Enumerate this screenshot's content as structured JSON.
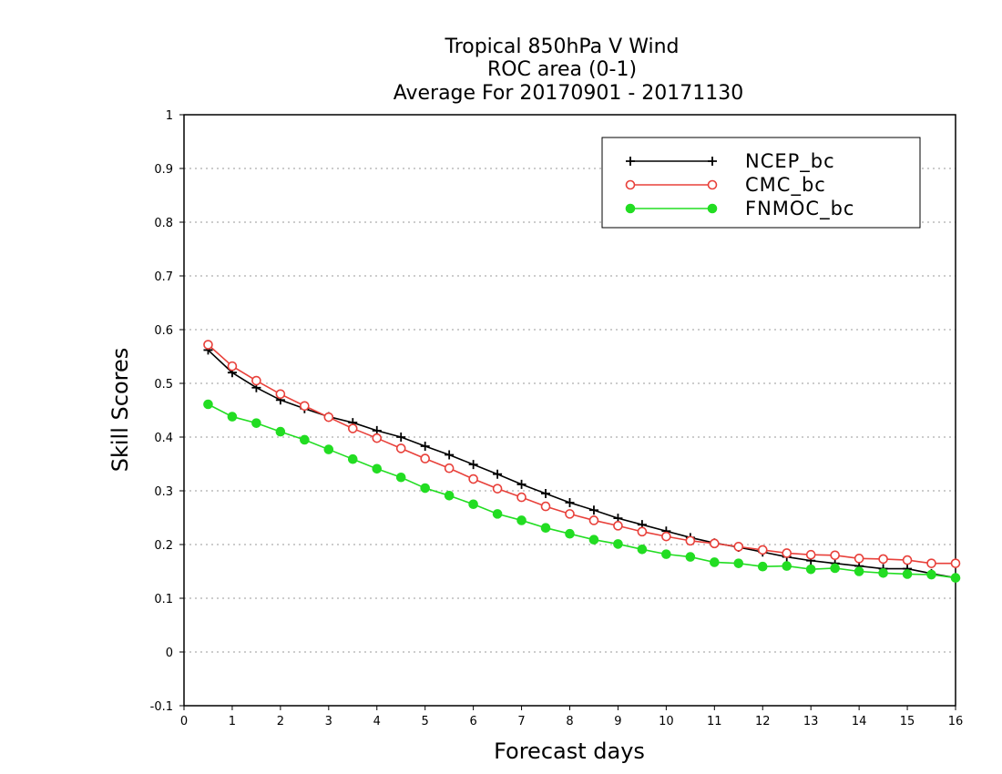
{
  "chart_data": {
    "type": "line",
    "title": [
      "Tropical 850hPa V Wind",
      "ROC area (0-1)",
      "Average For 20170901 - 20171130"
    ],
    "xlabel": "Forecast days",
    "ylabel": "Skill Scores",
    "xlim": [
      0,
      16
    ],
    "ylim": [
      -0.1,
      1
    ],
    "xticks": [
      "0",
      "1",
      "2",
      "3",
      "4",
      "5",
      "6",
      "7",
      "8",
      "9",
      "10",
      "11",
      "12",
      "13",
      "14",
      "15",
      "16"
    ],
    "yticks": [
      "-0.1",
      "0",
      "0.1",
      "0.2",
      "0.3",
      "0.4",
      "0.5",
      "0.6",
      "0.7",
      "0.8",
      "0.9",
      "1"
    ],
    "grid": "horizontal dotted",
    "legend_position": "top-right",
    "x": [
      0.5,
      1,
      1.5,
      2,
      2.5,
      3,
      3.5,
      4,
      4.5,
      5,
      5.5,
      6,
      6.5,
      7,
      7.5,
      8,
      8.5,
      9,
      9.5,
      10,
      10.5,
      11,
      11.5,
      12,
      12.5,
      13,
      13.5,
      14,
      14.5,
      15,
      15.5,
      16
    ],
    "series": [
      {
        "name": "NCEP_bc",
        "color": "#000000",
        "marker": "plus",
        "values": [
          0.562,
          0.52,
          0.492,
          0.469,
          0.453,
          0.438,
          0.427,
          0.412,
          0.4,
          0.383,
          0.367,
          0.349,
          0.331,
          0.312,
          0.295,
          0.278,
          0.264,
          0.249,
          0.237,
          0.225,
          0.213,
          0.203,
          0.195,
          0.186,
          0.177,
          0.17,
          0.165,
          0.16,
          0.155,
          0.155,
          0.146,
          0.138
        ]
      },
      {
        "name": "CMC_bc",
        "color": "#e8403a",
        "marker": "open-circle",
        "values": [
          0.572,
          0.532,
          0.505,
          0.48,
          0.458,
          0.437,
          0.416,
          0.398,
          0.379,
          0.36,
          0.342,
          0.322,
          0.304,
          0.288,
          0.271,
          0.257,
          0.245,
          0.235,
          0.224,
          0.215,
          0.207,
          0.202,
          0.196,
          0.19,
          0.184,
          0.181,
          0.18,
          0.174,
          0.173,
          0.171,
          0.165,
          0.165
        ]
      },
      {
        "name": "FNMOC_bc",
        "color": "#22dd22",
        "marker": "filled-circle",
        "values": [
          0.461,
          0.438,
          0.426,
          0.41,
          0.395,
          0.377,
          0.359,
          0.341,
          0.325,
          0.305,
          0.291,
          0.275,
          0.257,
          0.245,
          0.231,
          0.22,
          0.209,
          0.201,
          0.191,
          0.182,
          0.177,
          0.167,
          0.165,
          0.159,
          0.16,
          0.154,
          0.156,
          0.15,
          0.147,
          0.145,
          0.144,
          0.138
        ]
      }
    ]
  }
}
